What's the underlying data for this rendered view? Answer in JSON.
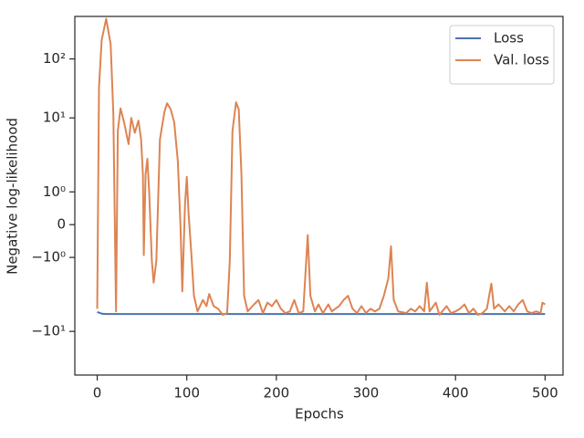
{
  "chart_data": {
    "type": "line",
    "xlabel": "Epochs",
    "ylabel": "Negative log-likelihood",
    "xlim": [
      -25,
      520
    ],
    "xticks": [
      0,
      100,
      200,
      300,
      400,
      500
    ],
    "ylim": [
      -55,
      526
    ],
    "yscale": "symlog",
    "linthresh": 2,
    "yticks": [
      {
        "value": 100,
        "label": "10²"
      },
      {
        "value": 10,
        "label": "10¹"
      },
      {
        "value": 1,
        "label": "10⁰"
      },
      0,
      {
        "value": -1,
        "label": "−10⁰"
      },
      {
        "value": -10,
        "label": "−10¹"
      }
    ],
    "grid": false,
    "legend": "upper right",
    "series": [
      {
        "name": "Loss",
        "color": "#4c72b0",
        "x": [
          0,
          5,
          10,
          100,
          200,
          300,
          400,
          500
        ],
        "values": [
          -4.7,
          -5.0,
          -5.07,
          -5.07,
          -5.07,
          -5.07,
          -5.07,
          -5.07
        ]
      },
      {
        "name": "Val. loss",
        "color": "#dd8452",
        "x": [
          0,
          2,
          5,
          10,
          15,
          18,
          21,
          23,
          26,
          30,
          35,
          38,
          42,
          46,
          49,
          51,
          52,
          54,
          56,
          58,
          61,
          63,
          66,
          70,
          75,
          78,
          82,
          86,
          90,
          93,
          95,
          98,
          100,
          102,
          105,
          108,
          112,
          118,
          122,
          125,
          130,
          135,
          140,
          145,
          148,
          151,
          155,
          158,
          161,
          164,
          168,
          175,
          180,
          185,
          190,
          195,
          200,
          205,
          210,
          215,
          220,
          225,
          230,
          235,
          238,
          243,
          247,
          252,
          258,
          262,
          270,
          275,
          280,
          285,
          290,
          295,
          300,
          305,
          310,
          315,
          320,
          325,
          328,
          331,
          336,
          345,
          350,
          355,
          360,
          365,
          368,
          371,
          378,
          382,
          390,
          395,
          400,
          405,
          410,
          415,
          420,
          425,
          430,
          435,
          440,
          443,
          448,
          455,
          460,
          465,
          470,
          475,
          480,
          485,
          490,
          495,
          497,
          500
        ],
        "values": [
          -4.13,
          33,
          210,
          480,
          177,
          11.8,
          -4.58,
          6,
          14.5,
          8.4,
          3.6,
          10,
          5.6,
          9,
          4.3,
          1.54,
          -0.93,
          1.54,
          2.03,
          1.0,
          -1.11,
          -1.77,
          -1.11,
          4.3,
          12.6,
          17.7,
          14,
          8.4,
          1.93,
          -0.05,
          -2.1,
          0.61,
          1.46,
          0.34,
          -0.85,
          -2.49,
          -4.58,
          -2.94,
          -3.73,
          -2.32,
          -3.73,
          -4.13,
          -5.24,
          -4.9,
          -1.11,
          6,
          18.4,
          14,
          1.54,
          -2.49,
          -4.58,
          -3.49,
          -2.94,
          -4.9,
          -3.26,
          -3.73,
          -2.94,
          -4.13,
          -4.9,
          -4.58,
          -2.94,
          -4.9,
          -4.58,
          -0.32,
          -2.49,
          -4.58,
          -3.49,
          -4.9,
          -3.49,
          -4.58,
          -3.73,
          -2.94,
          -2.49,
          -4.13,
          -4.9,
          -3.73,
          -4.9,
          -4.13,
          -4.58,
          -4.13,
          -2.49,
          -1.64,
          -0.66,
          -2.94,
          -4.58,
          -4.9,
          -4.13,
          -4.58,
          -3.73,
          -4.58,
          -1.77,
          -4.58,
          -3.26,
          -5.24,
          -3.73,
          -4.9,
          -4.58,
          -4.13,
          -3.49,
          -4.9,
          -4.13,
          -5.24,
          -4.9,
          -4.13,
          -1.8,
          -4.13,
          -3.49,
          -4.58,
          -3.73,
          -4.58,
          -3.49,
          -2.94,
          -4.58,
          -4.9,
          -4.58,
          -4.9,
          -3.26,
          -3.49
        ]
      }
    ]
  }
}
